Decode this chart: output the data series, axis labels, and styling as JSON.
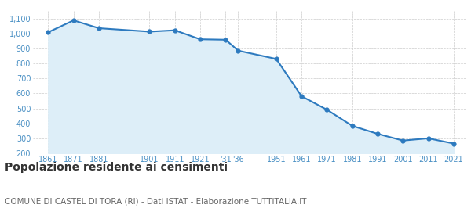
{
  "years": [
    1861,
    1871,
    1881,
    1901,
    1911,
    1921,
    1931,
    1936,
    1951,
    1961,
    1971,
    1981,
    1991,
    2001,
    2011,
    2021
  ],
  "population": [
    1008,
    1087,
    1035,
    1012,
    1021,
    961,
    958,
    885,
    830,
    581,
    491,
    383,
    330,
    285,
    300,
    265
  ],
  "line_color": "#2d7abf",
  "fill_color": "#ddeef8",
  "marker_color": "#2d7abf",
  "bg_color": "#ffffff",
  "grid_color": "#cccccc",
  "title": "Popolazione residente ai censimenti",
  "subtitle": "COMUNE DI CASTEL DI TORA (RI) - Dati ISTAT - Elaborazione TUTTITALIA.IT",
  "ylim": [
    200,
    1150
  ],
  "title_fontsize": 10,
  "subtitle_fontsize": 7.5,
  "tick_color": "#4a90c4",
  "tick_fontsize": 7
}
